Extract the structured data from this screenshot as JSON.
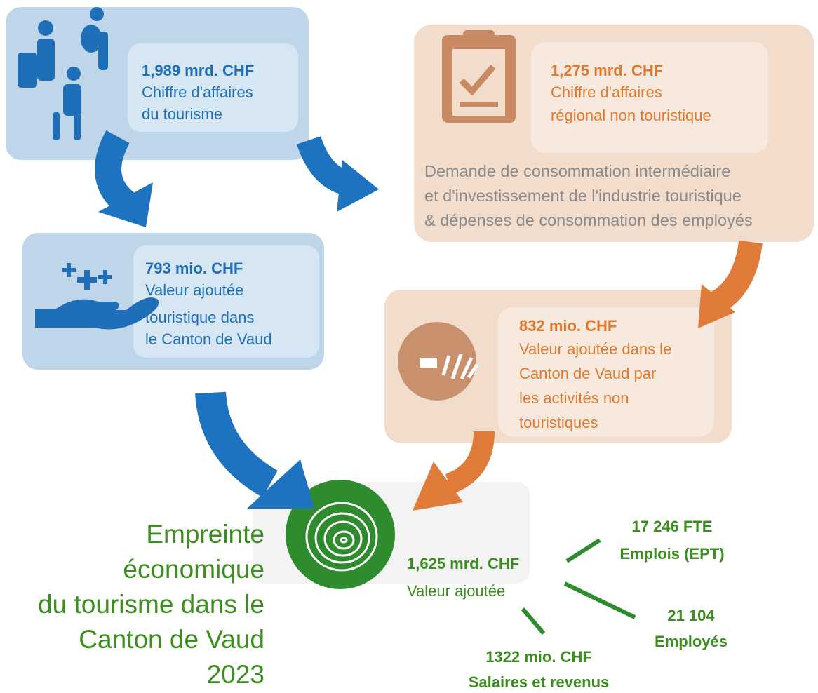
{
  "boxes": [
    {
      "value": "1,989 mrd. CHF",
      "lines": [
        "Chiffre d'affaires",
        "du tourisme"
      ]
    },
    {
      "value": "1,275 mrd. CHF",
      "lines": [
        "Chiffre d'affaires",
        "régional non touristique"
      ],
      "note": [
        "Demande de consommation intermédiaire",
        "et d'investissement de l'industrie touristique",
        "& dépenses de consommation des employés"
      ]
    },
    {
      "value": "793 mio. CHF",
      "lines": [
        "Valeur ajoutée",
        "touristique dans",
        "le Canton de Vaud"
      ]
    },
    {
      "value": "832 mio. CHF",
      "lines": [
        "Valeur ajoutée dans le",
        "Canton de Vaud par",
        "les activités non",
        "touristiques"
      ]
    }
  ],
  "footprint": {
    "title": [
      "Empreinte",
      "économique",
      "du tourisme dans le",
      "Canton de Vaud",
      "2023"
    ],
    "value": "1,625 mrd. CHF",
    "label": "Valeur ajoutée",
    "items": [
      {
        "value": "17 246 FTE",
        "label": "Emplois (EPT)"
      },
      {
        "value": "21 104",
        "label": "Employés"
      },
      {
        "value": "1322 mio. CHF",
        "label": "Salaires et revenus"
      }
    ]
  }
}
